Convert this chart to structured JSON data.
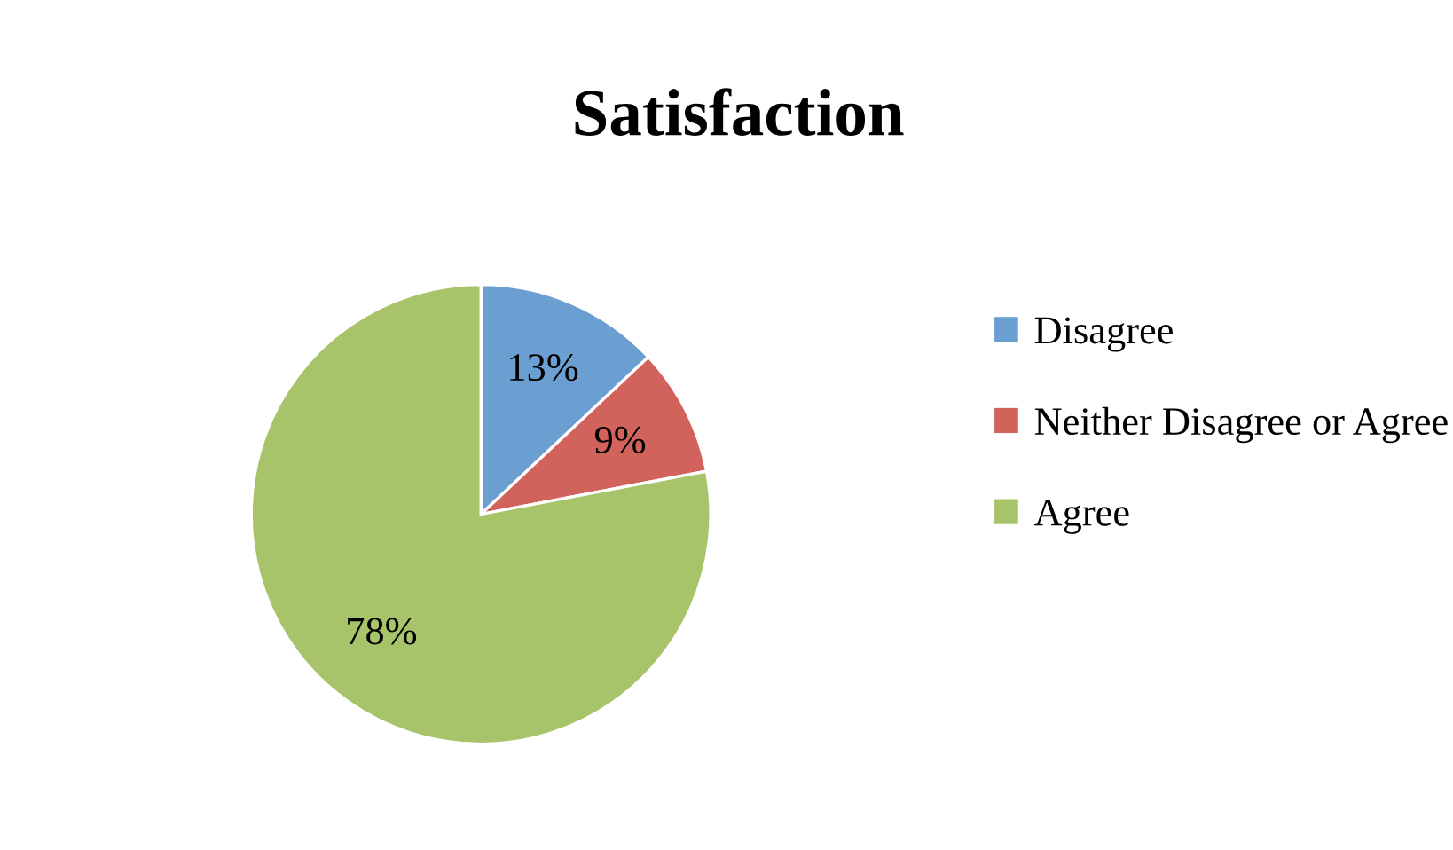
{
  "chart_data": {
    "type": "pie",
    "title": "Satisfaction",
    "categories": [
      "Disagree",
      "Neither Disagree or Agree",
      "Agree"
    ],
    "values": [
      13,
      9,
      78
    ],
    "colors": [
      "#6b9fd2",
      "#d2625c",
      "#a8c46b"
    ],
    "value_labels": [
      "13%",
      "9%",
      "78%"
    ],
    "legend": "right"
  }
}
